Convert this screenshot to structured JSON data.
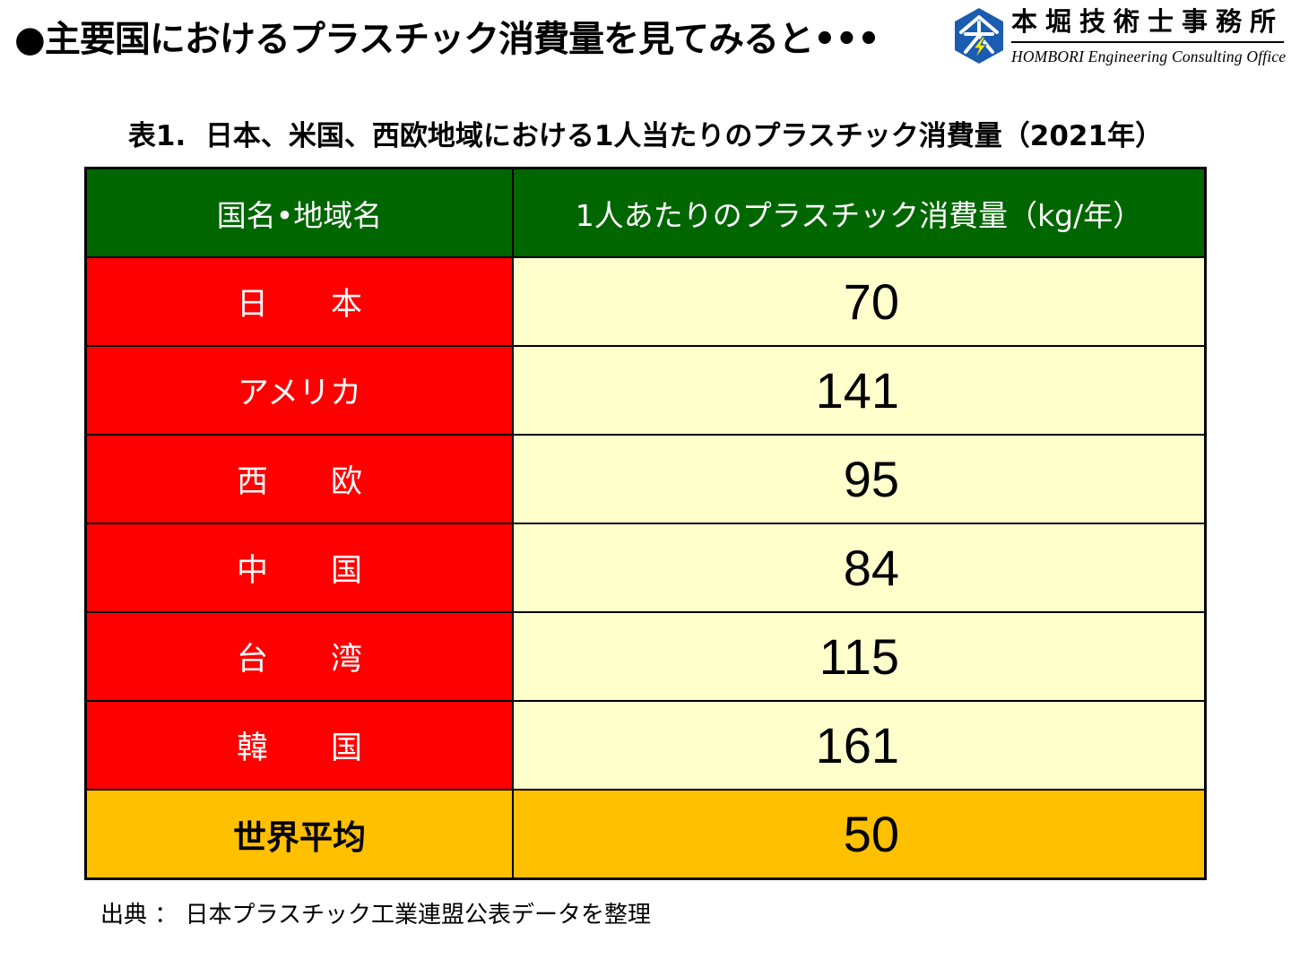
{
  "slide": {
    "title": "●主要国におけるプラスチック消費量を見てみると•••",
    "caption": "表1.  日本、米国、西欧地域における1人当たりのプラスチック消費量（2021年）",
    "source": "出典 ： 日本プラスチック工業連盟公表データを整理"
  },
  "logo": {
    "icon": "company-logo-icon",
    "name_jp": "本堀技術士事務所",
    "name_en": "HOMBORI Engineering Consulting Office"
  },
  "table": {
    "headers": [
      "国名•地域名",
      "1人あたりのプラスチック消費量（kg/年）"
    ],
    "rows": [
      {
        "region": "日　　本",
        "value": 70
      },
      {
        "region": "アメリカ",
        "value": 141
      },
      {
        "region": "西　　欧",
        "value": 95
      },
      {
        "region": "中　　国",
        "value": 84
      },
      {
        "region": "台　　湾",
        "value": 115
      },
      {
        "region": "韓　　国",
        "value": 161
      }
    ],
    "average": {
      "region": "世界平均",
      "value": 50
    }
  },
  "colors": {
    "header_bg": "#006600",
    "region_bg": "#FF0000",
    "value_bg": "#FFFFCC",
    "average_bg": "#FFC000",
    "logo_blue": "#1A5CB0",
    "logo_bolt": "#FFE600"
  }
}
